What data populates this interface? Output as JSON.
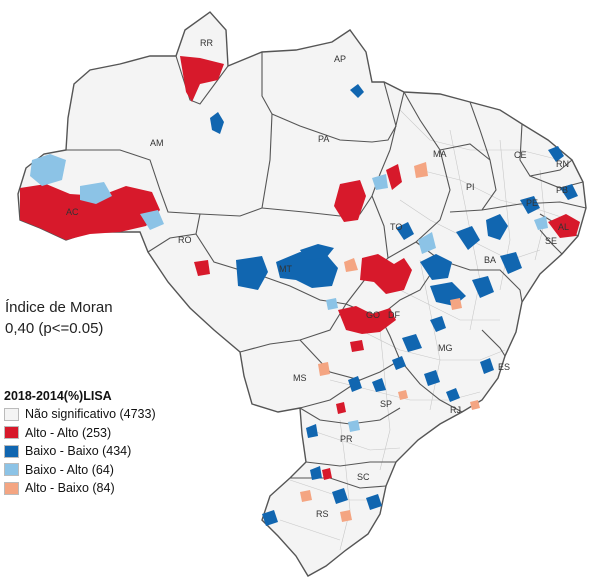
{
  "moran": {
    "title": "Índice de Moran",
    "value": "0,40  (p<=0.05)"
  },
  "legend": {
    "title": "2018-2014(%)LISA",
    "items": [
      {
        "label": "Não significativo (4733)",
        "color": "#f4f4f4"
      },
      {
        "label": "Alto - Alto (253)",
        "color": "#d7192b"
      },
      {
        "label": "Baixo - Baixo (434)",
        "color": "#1166b0"
      },
      {
        "label": "Baixo - Alto (64)",
        "color": "#8cc3e6"
      },
      {
        "label": "Alto - Baixo (84)",
        "color": "#f4a582"
      }
    ]
  },
  "states": [
    "RR",
    "AP",
    "AM",
    "PA",
    "MA",
    "CE",
    "RN",
    "PB",
    "PI",
    "PE",
    "AC",
    "AL",
    "SE",
    "TO",
    "RO",
    "BA",
    "MT",
    "DF",
    "GO",
    "MG",
    "ES",
    "MS",
    "SP",
    "RJ",
    "PR",
    "SC",
    "RS"
  ],
  "colors": {
    "base": "#f4f4f4",
    "outline": "#555555",
    "muni": "#c8c8c8"
  }
}
